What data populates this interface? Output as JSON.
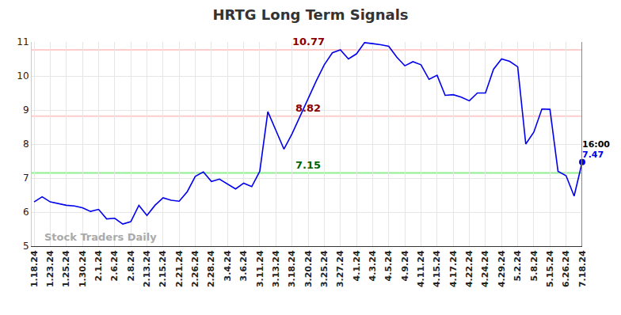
{
  "chart_data": {
    "type": "line",
    "title": "HRTG Long Term Signals",
    "categories": [
      "1.18.24",
      null,
      "1.23.24",
      null,
      "1.25.24",
      null,
      "1.30.24",
      null,
      "2.1.24",
      null,
      "2.6.24",
      null,
      "2.8.24",
      null,
      "2.13.24",
      null,
      "2.15.24",
      null,
      "2.21.24",
      null,
      "2.26.24",
      null,
      "2.28.24",
      null,
      "3.4.24",
      null,
      "3.6.24",
      null,
      "3.11.24",
      null,
      "3.13.24",
      null,
      "3.18.24",
      null,
      "3.20.24",
      null,
      "3.25.24",
      null,
      "3.27.24",
      null,
      "4.1.24",
      null,
      "4.3.24",
      null,
      "4.5.24",
      null,
      "4.9.24",
      null,
      "4.11.24",
      null,
      "4.15.24",
      null,
      "4.17.24",
      null,
      "4.22.24",
      null,
      "4.24.24",
      null,
      "4.29.24",
      null,
      "5.2.24",
      null,
      "5.8.24",
      null,
      "5.15.24",
      null,
      "6.26.24",
      null,
      "7.18.24"
    ],
    "values": [
      6.3,
      6.45,
      6.3,
      6.25,
      6.2,
      6.18,
      6.13,
      6.02,
      6.08,
      5.8,
      5.82,
      5.65,
      5.72,
      6.2,
      5.9,
      6.2,
      6.42,
      6.35,
      6.32,
      6.6,
      7.05,
      7.18,
      6.9,
      6.97,
      6.82,
      6.68,
      6.85,
      6.75,
      7.2,
      8.95,
      8.4,
      7.85,
      8.3,
      8.82,
      9.3,
      9.85,
      10.33,
      10.68,
      10.77,
      10.5,
      10.65,
      10.98,
      10.95,
      10.92,
      10.87,
      10.55,
      10.3,
      10.42,
      10.33,
      9.9,
      10.02,
      9.43,
      9.45,
      9.38,
      9.27,
      9.5,
      9.5,
      10.2,
      10.5,
      10.43,
      10.27,
      8.0,
      8.35,
      9.03,
      9.02,
      7.2,
      7.07,
      6.47,
      7.47
    ],
    "color": "#0000ee",
    "ylim": [
      5,
      11
    ],
    "yticks": [
      5,
      6,
      7,
      8,
      9,
      10,
      11
    ],
    "grid": true,
    "signal_lines": [
      {
        "value": 10.77,
        "color": "#ffcccc",
        "label_color": "#8b0000"
      },
      {
        "value": 8.82,
        "color": "#ffcccc",
        "label_color": "#8b0000"
      },
      {
        "value": 7.15,
        "color": "#90ee90",
        "label_color": "#006400"
      }
    ],
    "last_point_time": "16:00",
    "watermark": "Stock Traders Daily"
  }
}
